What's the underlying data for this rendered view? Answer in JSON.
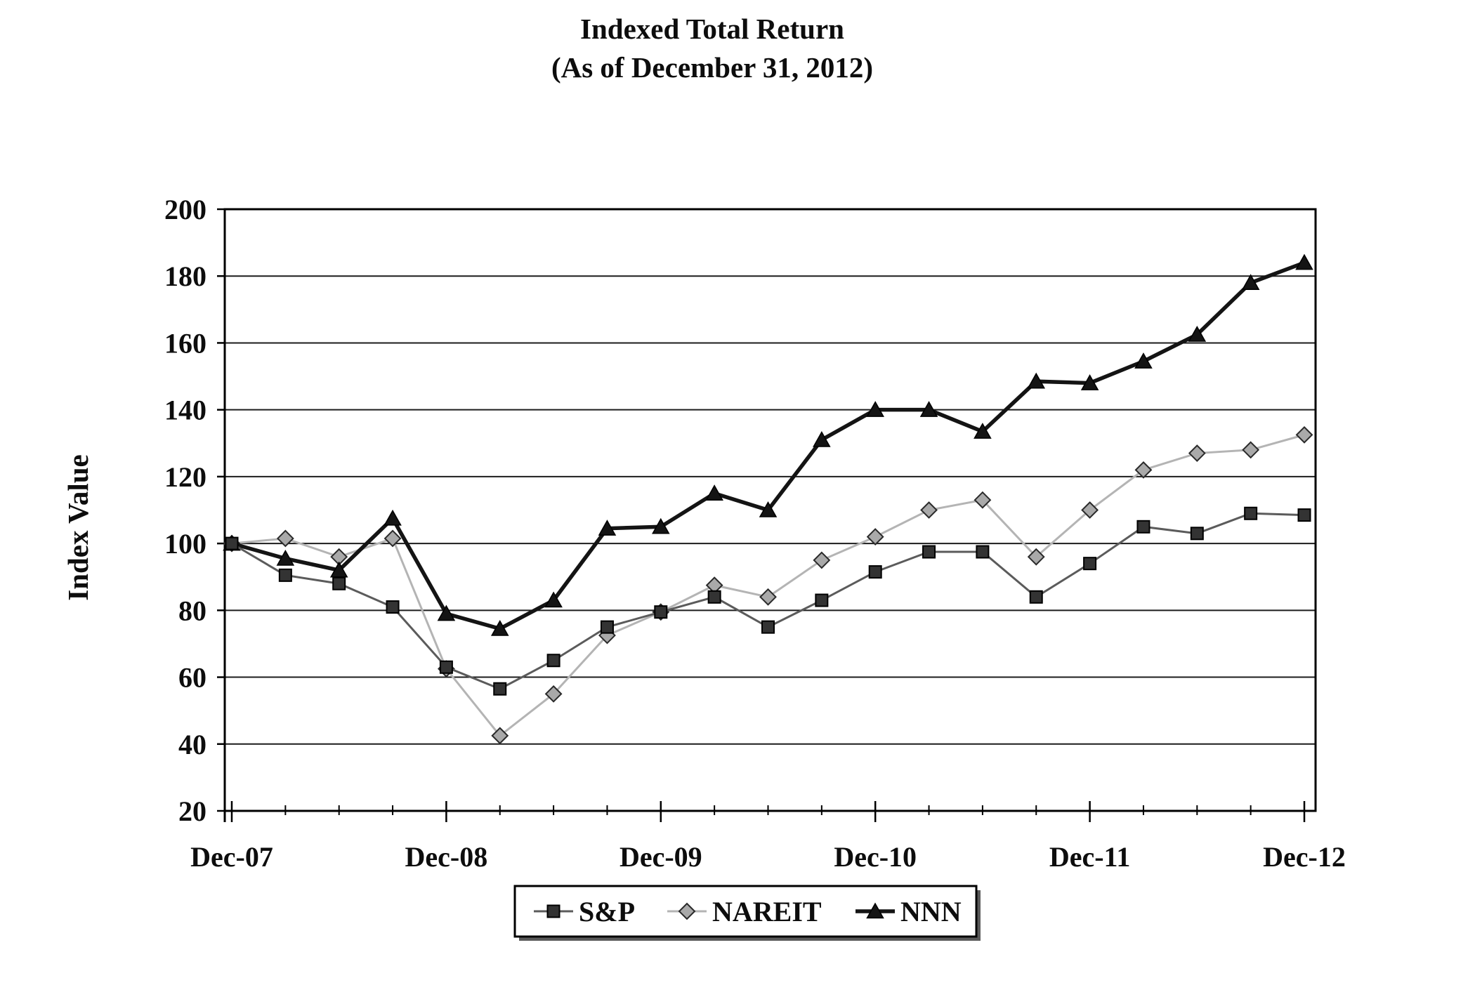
{
  "title": {
    "line1": "Indexed Total Return",
    "line2": "(As of December 31, 2012)"
  },
  "chart_data": {
    "type": "line",
    "title": "Indexed Total Return (As of December 31, 2012)",
    "grid": true,
    "background": "#ffffff",
    "y_axis": {
      "title": "Index Value",
      "min": 20,
      "max": 200,
      "tick_step": 20,
      "tick_labels": [
        "20",
        "40",
        "60",
        "80",
        "100",
        "120",
        "140",
        "160",
        "180",
        "200"
      ]
    },
    "x_axis": {
      "tick_labels": [
        "Dec-07",
        "Dec-08",
        "Dec-09",
        "Dec-10",
        "Dec-11",
        "Dec-12"
      ],
      "points_per_year": 4,
      "n_points": 21,
      "frequency": "quarterly"
    },
    "legend": {
      "position": "bottom-center",
      "entries": [
        "S&P",
        "NAREIT",
        "NNN"
      ]
    },
    "series": [
      {
        "name": "S&P",
        "marker": "square",
        "line_color": "#5b5b5b",
        "line_width": 3,
        "marker_fill": "#333333",
        "marker_stroke": "#000000",
        "values": [
          100,
          90.5,
          88,
          81,
          63,
          56.5,
          65,
          75,
          79.5,
          84,
          75,
          83,
          91.5,
          97.5,
          97.5,
          84,
          94,
          105,
          103,
          109,
          108.5
        ]
      },
      {
        "name": "NAREIT",
        "marker": "diamond",
        "line_color": "#b4b4b4",
        "line_width": 3,
        "marker_fill": "#a9a9a9",
        "marker_stroke": "#2a2a2a",
        "values": [
          100,
          101.5,
          96,
          101.5,
          62.5,
          42.5,
          55,
          72.5,
          79.5,
          87.5,
          84,
          95,
          102,
          110,
          113,
          96,
          110,
          122,
          127,
          128,
          132.5
        ]
      },
      {
        "name": "NNN",
        "marker": "triangle",
        "line_color": "#141414",
        "line_width": 5.5,
        "marker_fill": "#141414",
        "marker_stroke": "#000000",
        "values": [
          100,
          95.5,
          92,
          107.5,
          79,
          74.5,
          83,
          104.5,
          105,
          115,
          110,
          131,
          140,
          140,
          133.5,
          148.5,
          148,
          154.5,
          162.5,
          178,
          184
        ]
      }
    ]
  }
}
